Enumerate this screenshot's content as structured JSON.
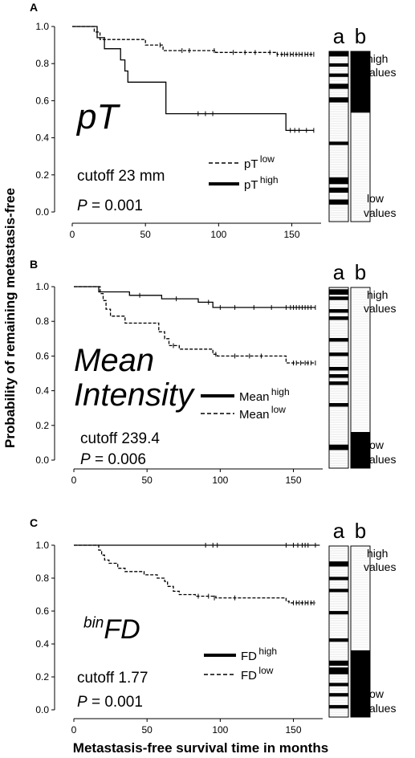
{
  "figure": {
    "ylabel": "Probability of remaining metastasis-free",
    "xlabel": "Metastasis-free survival time in months"
  },
  "chart_data": [
    {
      "type": "line",
      "panel_label": "A",
      "title": "pT",
      "cutoff_text": "cutoff 23 mm",
      "p_text": "P = 0.001",
      "xlim": [
        0,
        170
      ],
      "ylim": [
        0,
        1
      ],
      "xticks": [
        0,
        50,
        100,
        150
      ],
      "yticks": [
        "0.0",
        "0.2",
        "0.4",
        "0.6",
        "0.8",
        "1.0"
      ],
      "legend": [
        {
          "base": "pT",
          "sup": "low",
          "style": "dashed"
        },
        {
          "base": "pT",
          "sup": "high",
          "style": "solid"
        }
      ],
      "series": [
        {
          "name": "pT high",
          "style": "solid",
          "steps": [
            [
              0,
              1.0
            ],
            [
              17,
              0.94
            ],
            [
              22,
              0.88
            ],
            [
              33,
              0.82
            ],
            [
              36,
              0.76
            ],
            [
              38,
              0.7
            ],
            [
              48,
              0.7
            ],
            [
              64,
              0.53
            ],
            [
              145,
              0.53
            ],
            [
              146,
              0.44
            ],
            [
              165,
              0.44
            ]
          ],
          "censors": [
            [
              86,
              0.53
            ],
            [
              91,
              0.53
            ],
            [
              96,
              0.53
            ],
            [
              149,
              0.44
            ],
            [
              152,
              0.44
            ],
            [
              155,
              0.44
            ],
            [
              160,
              0.44
            ],
            [
              165,
              0.44
            ]
          ]
        },
        {
          "name": "pT low",
          "style": "dashed",
          "steps": [
            [
              0,
              1.0
            ],
            [
              15,
              0.97
            ],
            [
              19,
              0.93
            ],
            [
              50,
              0.9
            ],
            [
              62,
              0.87
            ],
            [
              98,
              0.86
            ],
            [
              140,
              0.85
            ],
            [
              165,
              0.85
            ]
          ],
          "censors": [
            [
              22,
              0.93
            ],
            [
              60,
              0.9
            ],
            [
              75,
              0.87
            ],
            [
              80,
              0.87
            ],
            [
              97,
              0.87
            ],
            [
              110,
              0.86
            ],
            [
              118,
              0.86
            ],
            [
              125,
              0.86
            ],
            [
              135,
              0.86
            ],
            [
              140,
              0.85
            ],
            [
              143,
              0.85
            ],
            [
              145,
              0.85
            ],
            [
              147,
              0.85
            ],
            [
              149,
              0.85
            ],
            [
              151,
              0.85
            ],
            [
              153,
              0.85
            ],
            [
              155,
              0.85
            ],
            [
              157,
              0.85
            ],
            [
              159,
              0.85
            ],
            [
              161,
              0.85
            ],
            [
              163,
              0.85
            ],
            [
              165,
              0.85
            ]
          ]
        }
      ],
      "bar_a": {
        "label": "a",
        "black_bands": [
          [
            0.97,
            1.0
          ],
          [
            0.91,
            0.93
          ],
          [
            0.85,
            0.87
          ],
          [
            0.78,
            0.81
          ],
          [
            0.7,
            0.73
          ],
          [
            0.45,
            0.47
          ],
          [
            0.22,
            0.26
          ],
          [
            0.17,
            0.2
          ],
          [
            0.1,
            0.13
          ]
        ]
      },
      "bar_b": {
        "label": "b",
        "fill_from": 0.64,
        "fill_to": 1.0,
        "top_text": [
          "high",
          "values"
        ],
        "bottom_text": [
          "low",
          "values"
        ]
      }
    },
    {
      "type": "line",
      "panel_label": "B",
      "title": "Mean Intensity",
      "cutoff_text": "cutoff 239.4",
      "p_text": "P = 0.006",
      "xlim": [
        0,
        170
      ],
      "ylim": [
        0,
        1
      ],
      "xticks": [
        0,
        50,
        100,
        150
      ],
      "yticks": [
        "0.0",
        "0.2",
        "0.4",
        "0.6",
        "0.8",
        "1.0"
      ],
      "legend": [
        {
          "base": "Mean",
          "sup": "high",
          "style": "solid"
        },
        {
          "base": "Mean",
          "sup": "low",
          "style": "dashed"
        }
      ],
      "series": [
        {
          "name": "Mean high",
          "style": "solid",
          "steps": [
            [
              0,
              1.0
            ],
            [
              17,
              0.97
            ],
            [
              38,
              0.95
            ],
            [
              60,
              0.93
            ],
            [
              85,
              0.91
            ],
            [
              95,
              0.88
            ],
            [
              165,
              0.88
            ]
          ],
          "censors": [
            [
              45,
              0.95
            ],
            [
              70,
              0.93
            ],
            [
              92,
              0.91
            ],
            [
              100,
              0.88
            ],
            [
              110,
              0.88
            ],
            [
              123,
              0.88
            ],
            [
              135,
              0.88
            ],
            [
              145,
              0.88
            ],
            [
              148,
              0.88
            ],
            [
              150,
              0.88
            ],
            [
              152,
              0.88
            ],
            [
              154,
              0.88
            ],
            [
              156,
              0.88
            ],
            [
              158,
              0.88
            ],
            [
              160,
              0.88
            ],
            [
              162,
              0.88
            ],
            [
              165,
              0.88
            ]
          ]
        },
        {
          "name": "Mean low",
          "style": "dashed",
          "steps": [
            [
              0,
              1.0
            ],
            [
              18,
              0.96
            ],
            [
              20,
              0.92
            ],
            [
              22,
              0.87
            ],
            [
              25,
              0.83
            ],
            [
              35,
              0.79
            ],
            [
              58,
              0.74
            ],
            [
              62,
              0.7
            ],
            [
              65,
              0.66
            ],
            [
              72,
              0.64
            ],
            [
              95,
              0.61
            ],
            [
              98,
              0.6
            ],
            [
              145,
              0.56
            ],
            [
              165,
              0.56
            ]
          ],
          "censors": [
            [
              68,
              0.66
            ],
            [
              97,
              0.61
            ],
            [
              110,
              0.6
            ],
            [
              120,
              0.6
            ],
            [
              128,
              0.6
            ],
            [
              150,
              0.56
            ],
            [
              152,
              0.56
            ],
            [
              155,
              0.56
            ],
            [
              158,
              0.56
            ],
            [
              160,
              0.56
            ],
            [
              162,
              0.56
            ],
            [
              165,
              0.56
            ]
          ]
        }
      ],
      "bar_a": {
        "label": "a",
        "black_bands": [
          [
            0.96,
            0.99
          ],
          [
            0.93,
            0.95
          ],
          [
            0.86,
            0.88
          ],
          [
            0.82,
            0.84
          ],
          [
            0.7,
            0.72
          ],
          [
            0.62,
            0.64
          ],
          [
            0.54,
            0.56
          ],
          [
            0.5,
            0.52
          ],
          [
            0.46,
            0.48
          ],
          [
            0.34,
            0.36
          ],
          [
            0.1,
            0.13
          ]
        ]
      },
      "bar_b": {
        "label": "b",
        "fill_from": 0.0,
        "fill_to": 0.2,
        "top_text": [
          "high",
          "values"
        ],
        "bottom_text": [
          "low",
          "values"
        ]
      }
    },
    {
      "type": "line",
      "panel_label": "C",
      "title_sup": "bin",
      "title": "FD",
      "cutoff_text": "cutoff 1.77",
      "p_text": "P = 0.001",
      "xlim": [
        0,
        170
      ],
      "ylim": [
        0,
        1
      ],
      "xticks": [
        0,
        50,
        100,
        150
      ],
      "yticks": [
        "0.0",
        "0.2",
        "0.4",
        "0.6",
        "0.8",
        "1.0"
      ],
      "legend": [
        {
          "base": "FD",
          "sup": "high",
          "style": "solid"
        },
        {
          "base": "FD",
          "sup": "low",
          "style": "dashed"
        }
      ],
      "series": [
        {
          "name": "FD high",
          "style": "solid",
          "steps": [
            [
              0,
              1.0
            ],
            [
              168,
              1.0
            ]
          ],
          "censors": [
            [
              90,
              1.0
            ],
            [
              95,
              1.0
            ],
            [
              98,
              1.0
            ],
            [
              145,
              1.0
            ],
            [
              150,
              1.0
            ],
            [
              153,
              1.0
            ],
            [
              156,
              1.0
            ],
            [
              158,
              1.0
            ],
            [
              160,
              1.0
            ],
            [
              165,
              1.0
            ]
          ]
        },
        {
          "name": "FD low",
          "style": "dashed",
          "steps": [
            [
              0,
              1.0
            ],
            [
              17,
              0.97
            ],
            [
              19,
              0.94
            ],
            [
              21,
              0.91
            ],
            [
              24,
              0.89
            ],
            [
              30,
              0.86
            ],
            [
              35,
              0.84
            ],
            [
              48,
              0.82
            ],
            [
              57,
              0.8
            ],
            [
              62,
              0.78
            ],
            [
              64,
              0.75
            ],
            [
              68,
              0.72
            ],
            [
              72,
              0.7
            ],
            [
              83,
              0.69
            ],
            [
              97,
              0.68
            ],
            [
              145,
              0.66
            ],
            [
              147,
              0.65
            ],
            [
              165,
              0.65
            ]
          ],
          "censors": [
            [
              85,
              0.69
            ],
            [
              92,
              0.69
            ],
            [
              96,
              0.68
            ],
            [
              110,
              0.68
            ],
            [
              150,
              0.65
            ],
            [
              152,
              0.65
            ],
            [
              154,
              0.65
            ],
            [
              156,
              0.65
            ],
            [
              158,
              0.65
            ],
            [
              160,
              0.65
            ],
            [
              162,
              0.65
            ],
            [
              164,
              0.65
            ]
          ]
        }
      ],
      "bar_a": {
        "label": "a",
        "black_bands": [
          [
            0.88,
            0.91
          ],
          [
            0.8,
            0.82
          ],
          [
            0.73,
            0.75
          ],
          [
            0.6,
            0.62
          ],
          [
            0.44,
            0.46
          ],
          [
            0.3,
            0.33
          ],
          [
            0.25,
            0.29
          ],
          [
            0.18,
            0.2
          ],
          [
            0.12,
            0.14
          ],
          [
            0.05,
            0.07
          ]
        ]
      },
      "bar_b": {
        "label": "b",
        "fill_from": 0.0,
        "fill_to": 0.39,
        "top_text": [
          "high",
          "values"
        ],
        "bottom_text": [
          "low",
          "values"
        ]
      }
    }
  ]
}
